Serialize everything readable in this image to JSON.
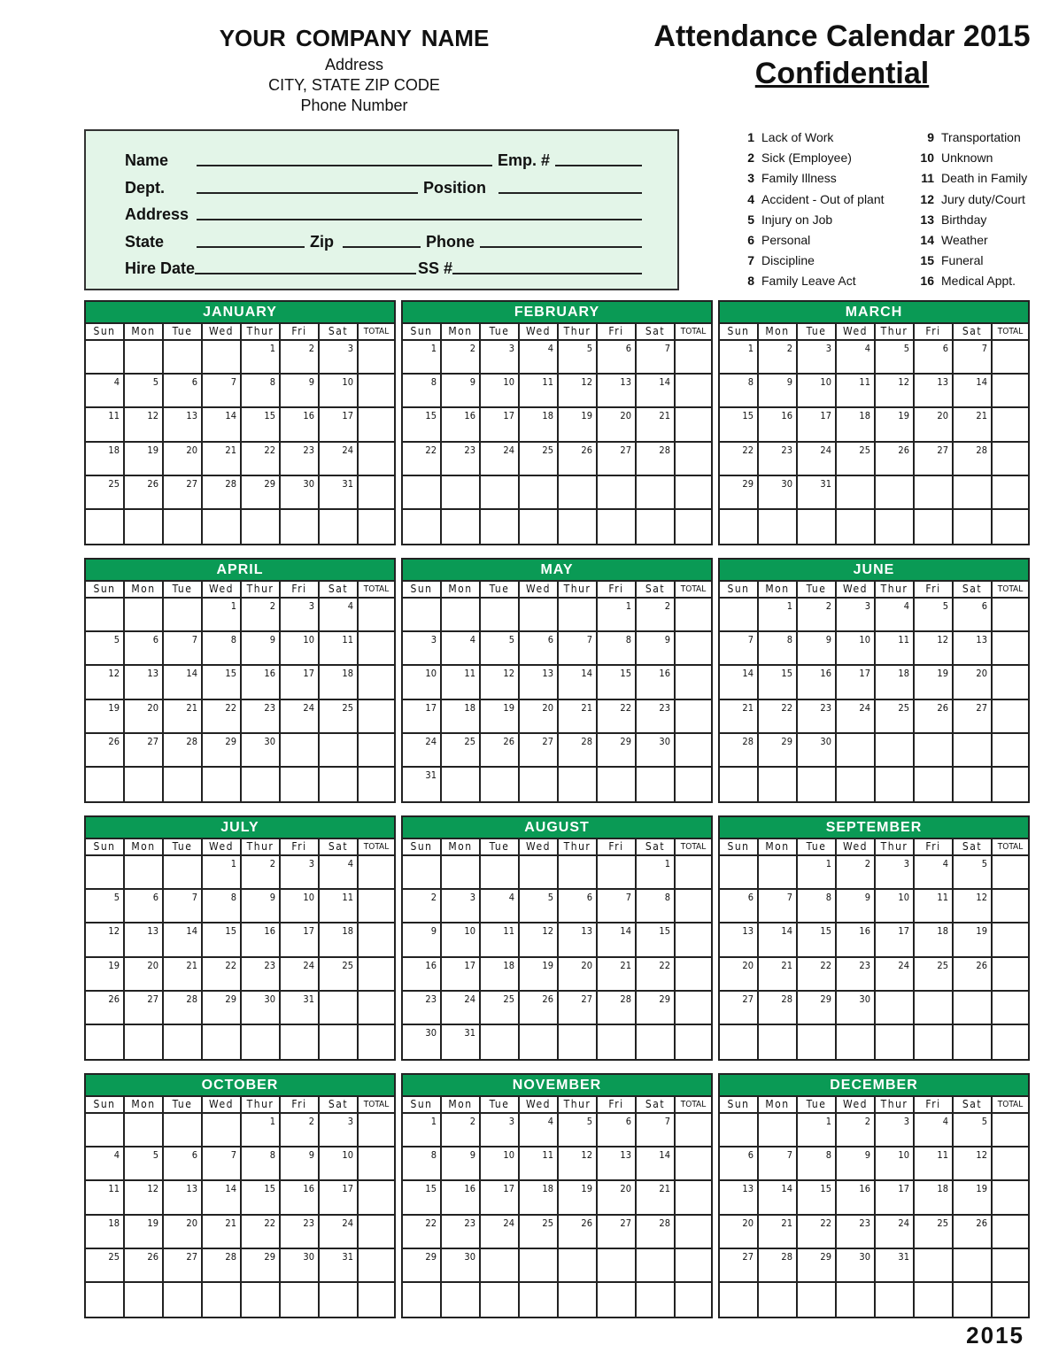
{
  "company": {
    "name": "YOUR COMPANY NAME",
    "address": "Address",
    "city": "CITY, STATE  ZIP CODE",
    "phone": "Phone Number"
  },
  "title": "Attendance Calendar 2015",
  "subtitle": "Confidential",
  "form": {
    "name": "Name",
    "emp": "Emp. #",
    "dept": "Dept.",
    "position": "Position",
    "address": "Address",
    "state": "State",
    "zip": "Zip",
    "phone": "Phone",
    "hire": "Hire Date",
    "ss": "SS #"
  },
  "legend": [
    {
      "n": "1",
      "t": "Lack of Work"
    },
    {
      "n": "2",
      "t": "Sick (Employee)"
    },
    {
      "n": "3",
      "t": "Family Illness"
    },
    {
      "n": "4",
      "t": "Accident - Out of plant"
    },
    {
      "n": "5",
      "t": "Injury on Job"
    },
    {
      "n": "6",
      "t": "Personal"
    },
    {
      "n": "7",
      "t": "Discipline"
    },
    {
      "n": "8",
      "t": "Family Leave Act"
    },
    {
      "n": "9",
      "t": "Transportation"
    },
    {
      "n": "10",
      "t": "Unknown"
    },
    {
      "n": "11",
      "t": "Death in Family"
    },
    {
      "n": "12",
      "t": "Jury duty/Court"
    },
    {
      "n": "13",
      "t": "Birthday"
    },
    {
      "n": "14",
      "t": "Weather"
    },
    {
      "n": "15",
      "t": "Funeral"
    },
    {
      "n": "16",
      "t": "Medical Appt."
    }
  ],
  "weekdays": [
    "Sun",
    "Mon",
    "Tue",
    "Wed",
    "Thur",
    "Fri",
    "Sat",
    "TOTAL"
  ],
  "months": [
    {
      "name": "JANUARY",
      "first_weekday": 4,
      "days": 31
    },
    {
      "name": "FEBRUARY",
      "first_weekday": 0,
      "days": 28
    },
    {
      "name": "MARCH",
      "first_weekday": 0,
      "days": 31
    },
    {
      "name": "APRIL",
      "first_weekday": 3,
      "days": 30
    },
    {
      "name": "MAY",
      "first_weekday": 5,
      "days": 31
    },
    {
      "name": "JUNE",
      "first_weekday": 1,
      "days": 30
    },
    {
      "name": "JULY",
      "first_weekday": 3,
      "days": 31
    },
    {
      "name": "AUGUST",
      "first_weekday": 6,
      "days": 31
    },
    {
      "name": "SEPTEMBER",
      "first_weekday": 2,
      "days": 30
    },
    {
      "name": "OCTOBER",
      "first_weekday": 4,
      "days": 31
    },
    {
      "name": "NOVEMBER",
      "first_weekday": 0,
      "days": 30
    },
    {
      "name": "DECEMBER",
      "first_weekday": 2,
      "days": 31
    }
  ],
  "footer_year": "2015",
  "colors": {
    "accent": "#0a9a55",
    "form_bg": "#e3f5e8"
  }
}
